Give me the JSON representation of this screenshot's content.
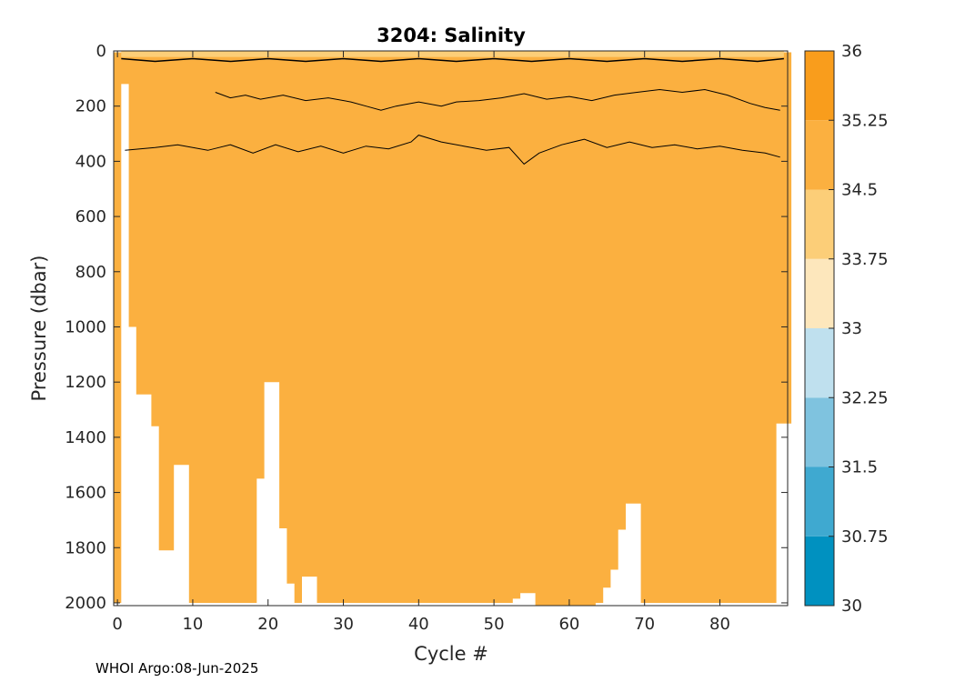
{
  "footer": "WHOI Argo:08-Jun-2025",
  "colors": {
    "fill": "#FBB040",
    "contour": "#000000"
  },
  "chart_data": {
    "type": "heatmap",
    "title": "3204:  Salinity",
    "xlabel": "Cycle #",
    "ylabel": "Pressure (dbar)",
    "xlim": [
      -0.5,
      89
    ],
    "ylim": [
      2010,
      0
    ],
    "x_ticks": [
      0,
      10,
      20,
      30,
      40,
      50,
      60,
      70,
      80
    ],
    "y_ticks": [
      0,
      200,
      400,
      600,
      800,
      1000,
      1200,
      1400,
      1600,
      1800,
      2000
    ],
    "colorbar": {
      "ticks": [
        30,
        30.75,
        31.5,
        32.25,
        33,
        33.75,
        34.5,
        35.25,
        36
      ],
      "tick_labels": [
        "30",
        "30.75",
        "31.5",
        "32.25",
        "33",
        "33.75",
        "34.5",
        "35.25",
        "36"
      ],
      "colors": [
        "#0091C0",
        "#3FA9D0",
        "#7FC3DF",
        "#BFE0EE",
        "#FDE7BC",
        "#FCCE78",
        "#FBB040",
        "#F99D1C"
      ]
    },
    "profile_max_depth": [
      {
        "cycle": 0,
        "depth": 2000
      },
      {
        "cycle": 1,
        "depth": 120
      },
      {
        "cycle": 2,
        "depth": 1000
      },
      {
        "cycle": 3,
        "depth": 1245
      },
      {
        "cycle": 4,
        "depth": 1245
      },
      {
        "cycle": 5,
        "depth": 1360
      },
      {
        "cycle": 6,
        "depth": 1810
      },
      {
        "cycle": 7,
        "depth": 1810
      },
      {
        "cycle": 8,
        "depth": 1500
      },
      {
        "cycle": 9,
        "depth": 1500
      },
      {
        "cycle": 10,
        "depth": 2000
      },
      {
        "cycle": 18,
        "depth": 2000
      },
      {
        "cycle": 19,
        "depth": 1550
      },
      {
        "cycle": 20,
        "depth": 1200
      },
      {
        "cycle": 21,
        "depth": 1200
      },
      {
        "cycle": 22,
        "depth": 1730
      },
      {
        "cycle": 23,
        "depth": 1930
      },
      {
        "cycle": 24,
        "depth": 2000
      },
      {
        "cycle": 25,
        "depth": 1905
      },
      {
        "cycle": 26,
        "depth": 1905
      },
      {
        "cycle": 27,
        "depth": 2000
      },
      {
        "cycle": 52,
        "depth": 2000
      },
      {
        "cycle": 53,
        "depth": 1985
      },
      {
        "cycle": 54,
        "depth": 1965
      },
      {
        "cycle": 55,
        "depth": 1965
      },
      {
        "cycle": 56,
        "depth": 2010
      },
      {
        "cycle": 64,
        "depth": 2000
      },
      {
        "cycle": 65,
        "depth": 1945
      },
      {
        "cycle": 66,
        "depth": 1880
      },
      {
        "cycle": 67,
        "depth": 1735
      },
      {
        "cycle": 68,
        "depth": 1640
      },
      {
        "cycle": 69,
        "depth": 1640
      },
      {
        "cycle": 70,
        "depth": 2000
      },
      {
        "cycle": 87,
        "depth": 2000
      },
      {
        "cycle": 88,
        "depth": 1350
      },
      {
        "cycle": 89,
        "depth": 1350
      }
    ],
    "contour_35_25_depth": [
      {
        "cycle": 1,
        "depth": 360
      },
      {
        "cycle": 5,
        "depth": 350
      },
      {
        "cycle": 8,
        "depth": 340
      },
      {
        "cycle": 12,
        "depth": 360
      },
      {
        "cycle": 15,
        "depth": 340
      },
      {
        "cycle": 18,
        "depth": 370
      },
      {
        "cycle": 21,
        "depth": 340
      },
      {
        "cycle": 24,
        "depth": 365
      },
      {
        "cycle": 27,
        "depth": 345
      },
      {
        "cycle": 30,
        "depth": 370
      },
      {
        "cycle": 33,
        "depth": 345
      },
      {
        "cycle": 36,
        "depth": 355
      },
      {
        "cycle": 39,
        "depth": 330
      },
      {
        "cycle": 40,
        "depth": 305
      },
      {
        "cycle": 43,
        "depth": 330
      },
      {
        "cycle": 46,
        "depth": 345
      },
      {
        "cycle": 49,
        "depth": 360
      },
      {
        "cycle": 52,
        "depth": 350
      },
      {
        "cycle": 54,
        "depth": 410
      },
      {
        "cycle": 56,
        "depth": 370
      },
      {
        "cycle": 59,
        "depth": 340
      },
      {
        "cycle": 62,
        "depth": 320
      },
      {
        "cycle": 65,
        "depth": 350
      },
      {
        "cycle": 68,
        "depth": 330
      },
      {
        "cycle": 71,
        "depth": 350
      },
      {
        "cycle": 74,
        "depth": 340
      },
      {
        "cycle": 77,
        "depth": 355
      },
      {
        "cycle": 80,
        "depth": 345
      },
      {
        "cycle": 83,
        "depth": 360
      },
      {
        "cycle": 86,
        "depth": 370
      },
      {
        "cycle": 88,
        "depth": 385
      }
    ],
    "contour_35_5_depth": [
      {
        "cycle": 13,
        "depth": 150
      },
      {
        "cycle": 15,
        "depth": 170
      },
      {
        "cycle": 17,
        "depth": 160
      },
      {
        "cycle": 19,
        "depth": 175
      },
      {
        "cycle": 22,
        "depth": 160
      },
      {
        "cycle": 25,
        "depth": 180
      },
      {
        "cycle": 28,
        "depth": 170
      },
      {
        "cycle": 31,
        "depth": 185
      },
      {
        "cycle": 33,
        "depth": 200
      },
      {
        "cycle": 35,
        "depth": 215
      },
      {
        "cycle": 37,
        "depth": 200
      },
      {
        "cycle": 40,
        "depth": 185
      },
      {
        "cycle": 43,
        "depth": 200
      },
      {
        "cycle": 45,
        "depth": 185
      },
      {
        "cycle": 48,
        "depth": 180
      },
      {
        "cycle": 51,
        "depth": 170
      },
      {
        "cycle": 54,
        "depth": 155
      },
      {
        "cycle": 57,
        "depth": 175
      },
      {
        "cycle": 60,
        "depth": 165
      },
      {
        "cycle": 63,
        "depth": 180
      },
      {
        "cycle": 66,
        "depth": 160
      },
      {
        "cycle": 69,
        "depth": 150
      },
      {
        "cycle": 72,
        "depth": 140
      },
      {
        "cycle": 75,
        "depth": 150
      },
      {
        "cycle": 78,
        "depth": 140
      },
      {
        "cycle": 81,
        "depth": 160
      },
      {
        "cycle": 84,
        "depth": 190
      },
      {
        "cycle": 86,
        "depth": 205
      },
      {
        "cycle": 88,
        "depth": 215
      }
    ]
  }
}
